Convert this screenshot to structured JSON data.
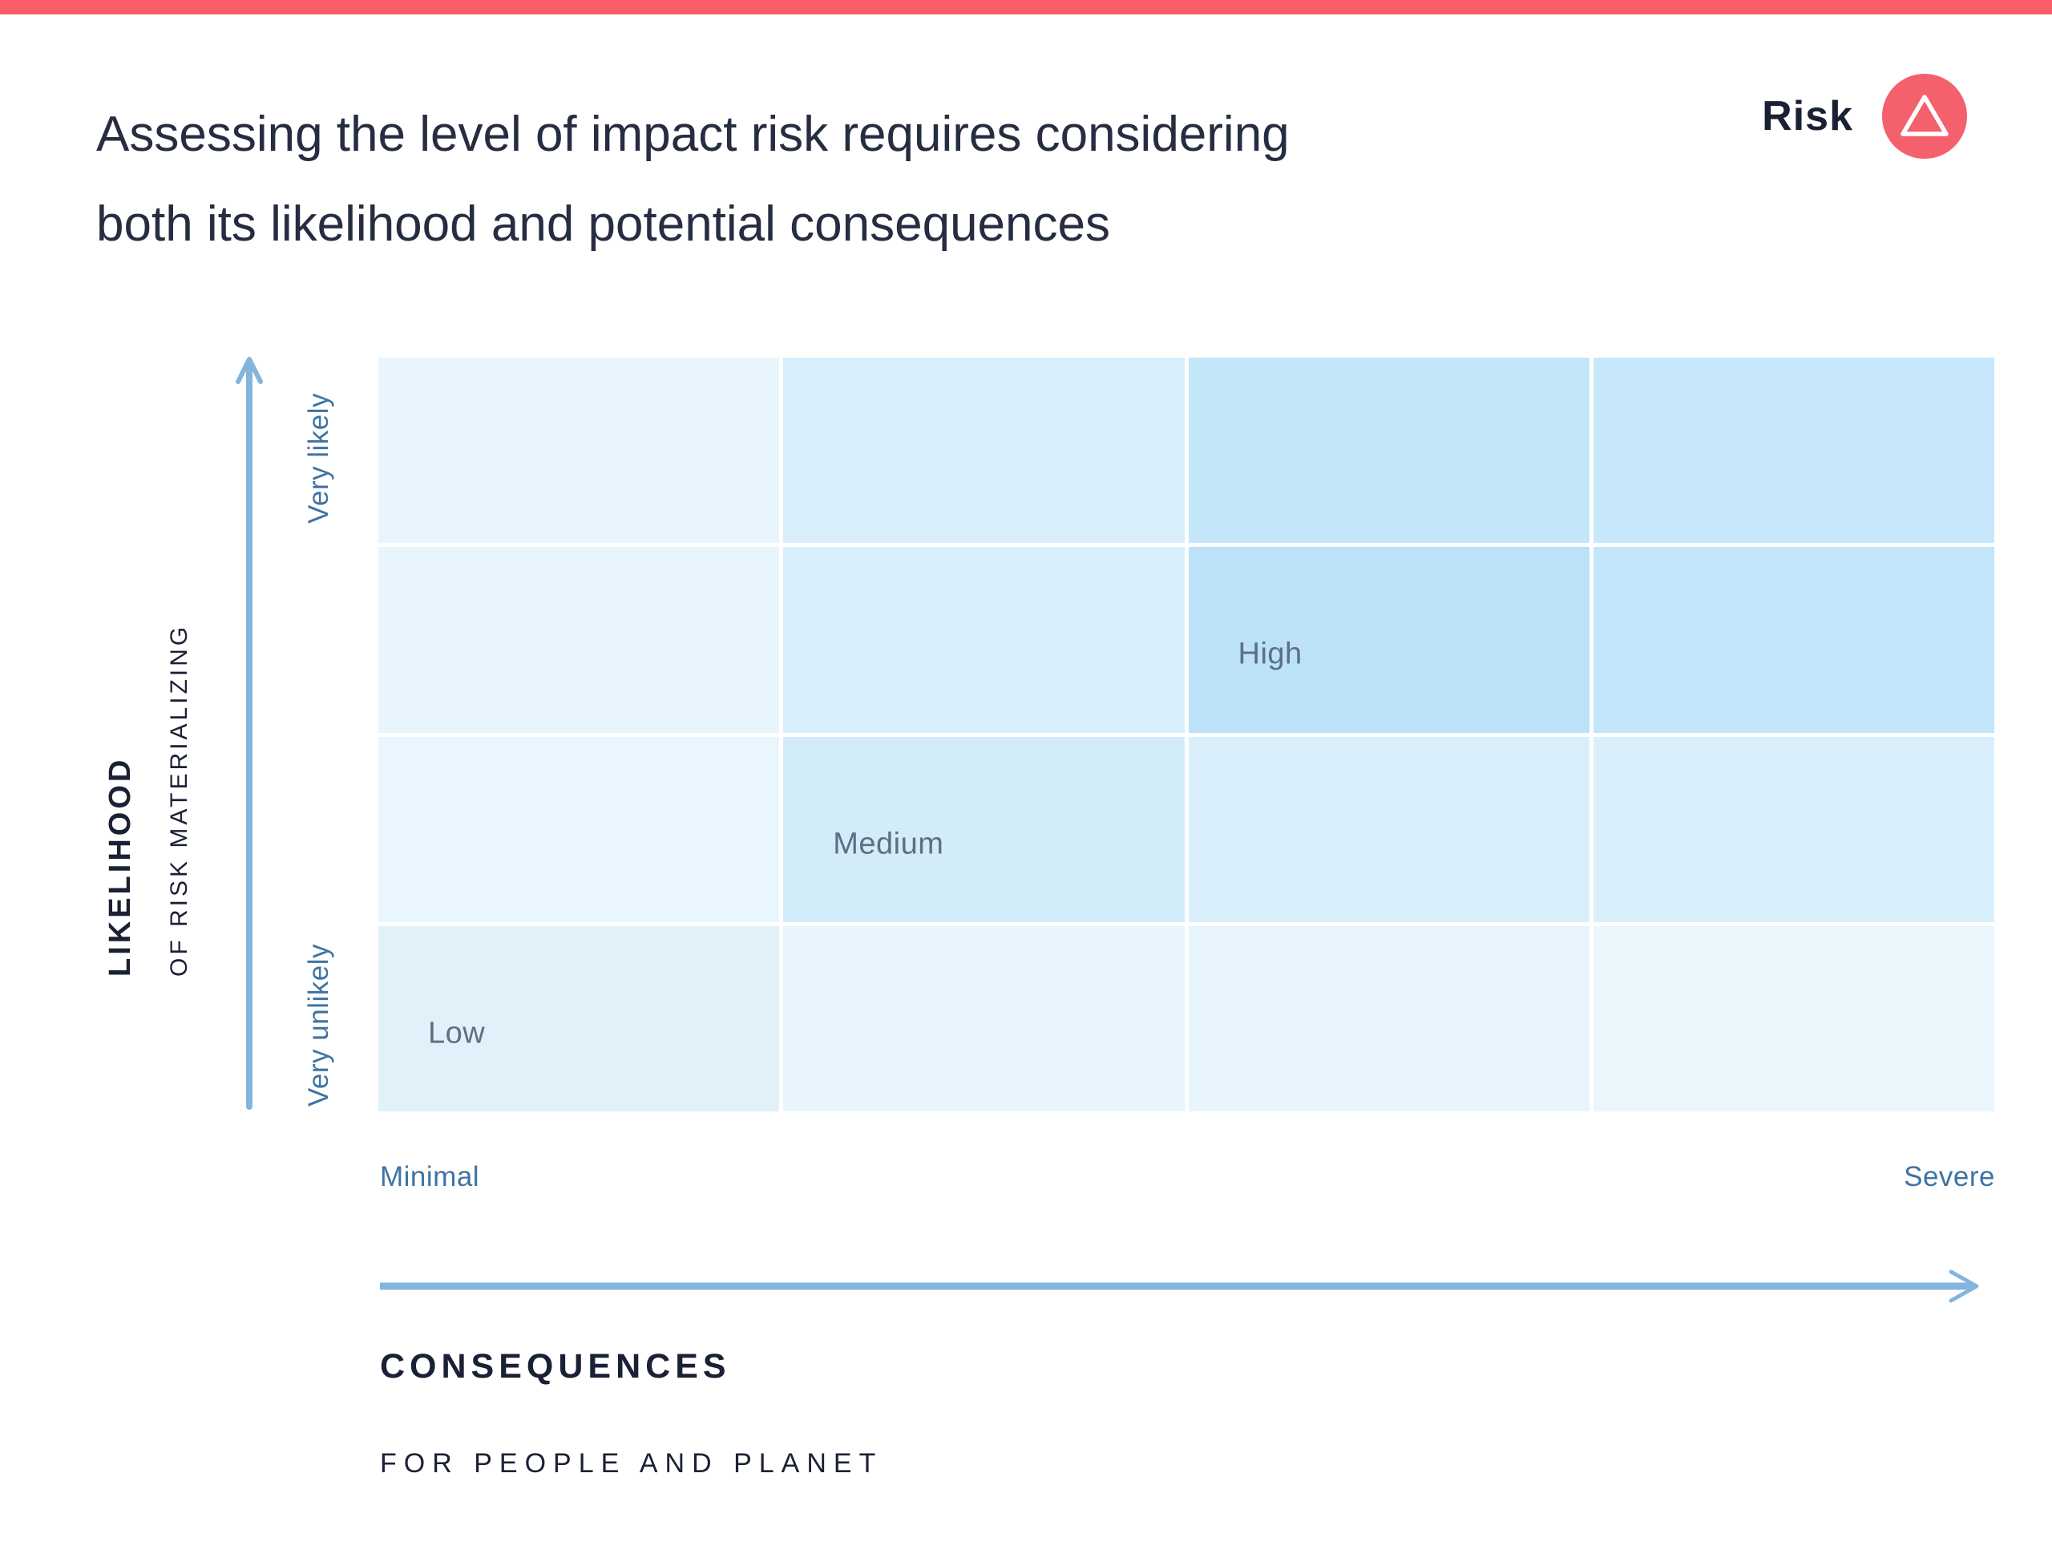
{
  "colors": {
    "accent-red": "#F95D66",
    "badge-red": "#F4606C",
    "navy": "#1B2134",
    "title-navy": "#272D41",
    "steel-blue": "#3F73A3",
    "arrow-blue": "#84B5DD",
    "cell-label": "#5D6F82",
    "bg": "#FFFFFF"
  },
  "header": {
    "title_line1": "Assessing the level of impact risk requires considering",
    "title_line2": "both its likelihood and potential consequences",
    "brand": {
      "label": "Risk",
      "icon": "triangle-outline-icon"
    }
  },
  "matrix": {
    "rows": 4,
    "cols": 4,
    "y_axis": {
      "title": "LIKELIHOOD",
      "subtitle": "OF RISK MATERIALIZING",
      "max_label": "Very likely",
      "min_label": "Very unlikely"
    },
    "x_axis": {
      "title": "CONSEQUENCES",
      "subtitle": "FOR PEOPLE AND PLANET",
      "min_label": "Minimal",
      "max_label": "Severe"
    },
    "cells": [
      {
        "row": 1,
        "col": 1,
        "color": "#E9F5FC",
        "label": ""
      },
      {
        "row": 1,
        "col": 2,
        "color": "#D8EEFA",
        "label": ""
      },
      {
        "row": 1,
        "col": 3,
        "color": "#C3E6F9",
        "label": ""
      },
      {
        "row": 1,
        "col": 4,
        "color": "#C6E8FA",
        "label": ""
      },
      {
        "row": 2,
        "col": 1,
        "color": "#E9F5FC",
        "label": ""
      },
      {
        "row": 2,
        "col": 2,
        "color": "#D8EEFA",
        "label": ""
      },
      {
        "row": 2,
        "col": 3,
        "color": "#BBE2F8",
        "label": "High"
      },
      {
        "row": 2,
        "col": 4,
        "color": "#C2E5F9",
        "label": ""
      },
      {
        "row": 3,
        "col": 1,
        "color": "#EAF6FD",
        "label": ""
      },
      {
        "row": 3,
        "col": 2,
        "color": "#D2ECFA",
        "label": "Medium"
      },
      {
        "row": 3,
        "col": 3,
        "color": "#D9EFFB",
        "label": ""
      },
      {
        "row": 3,
        "col": 4,
        "color": "#D9EFFB",
        "label": ""
      },
      {
        "row": 4,
        "col": 1,
        "color": "#E1F1FA",
        "label": "Low"
      },
      {
        "row": 4,
        "col": 2,
        "color": "#E8F5FD",
        "label": ""
      },
      {
        "row": 4,
        "col": 3,
        "color": "#E8F5FD",
        "label": ""
      },
      {
        "row": 4,
        "col": 4,
        "color": "#EBF6FD",
        "label": ""
      }
    ]
  }
}
